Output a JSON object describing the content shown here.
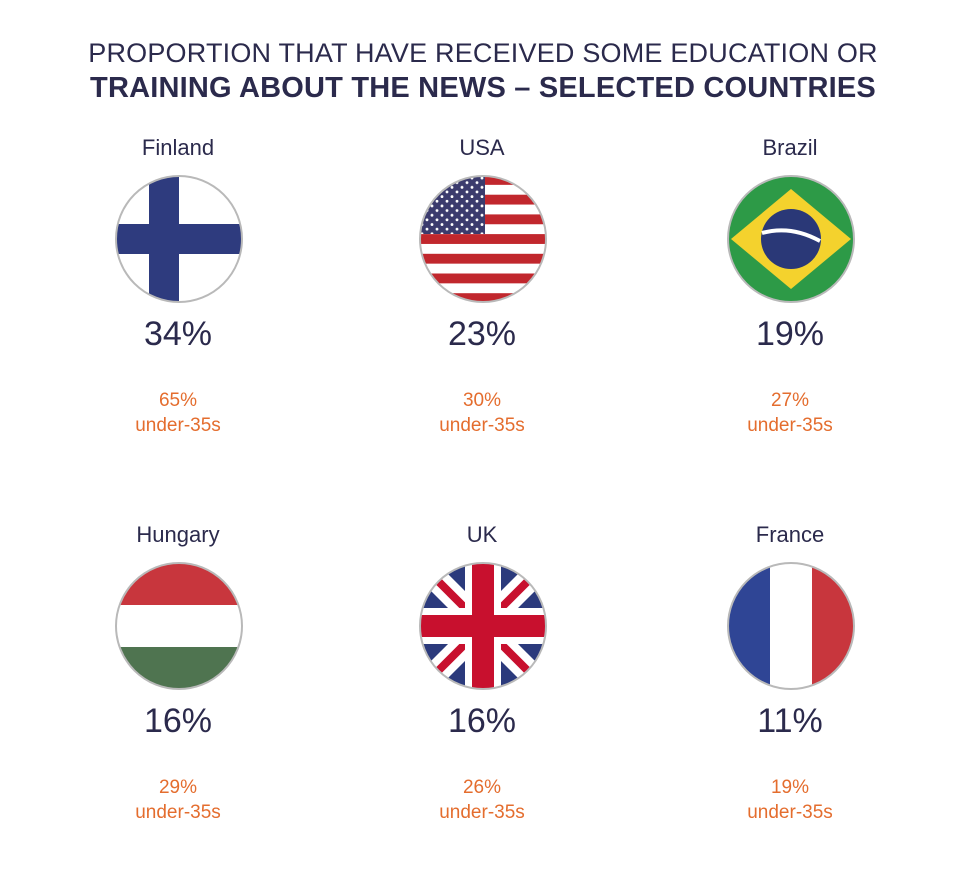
{
  "title": {
    "line1": "PROPORTION THAT HAVE RECEIVED SOME EDUCATION OR",
    "line2": "TRAINING ABOUT THE NEWS – SELECTED COUNTRIES"
  },
  "colors": {
    "text": "#2b2a4c",
    "accent": "#e46d2e"
  },
  "chart_data": {
    "type": "table",
    "title": "PROPORTION THAT HAVE RECEIVED SOME EDUCATION OR TRAINING ABOUT THE NEWS – SELECTED COUNTRIES",
    "sub_label": "under-35s",
    "countries": [
      {
        "name": "Finland",
        "all": "34%",
        "under35": "65%",
        "sub_label": "under-35s",
        "flag_icon": "finland-flag-icon",
        "value": 34,
        "under35_value": 65
      },
      {
        "name": "USA",
        "all": "23%",
        "under35": "30%",
        "sub_label": "under-35s",
        "flag_icon": "usa-flag-icon",
        "value": 23,
        "under35_value": 30
      },
      {
        "name": "Brazil",
        "all": "19%",
        "under35": "27%",
        "sub_label": "under-35s",
        "flag_icon": "brazil-flag-icon",
        "value": 19,
        "under35_value": 27
      },
      {
        "name": "Hungary",
        "all": "16%",
        "under35": "29%",
        "sub_label": "under-35s",
        "flag_icon": "hungary-flag-icon",
        "value": 16,
        "under35_value": 29
      },
      {
        "name": "UK",
        "all": "16%",
        "under35": "26%",
        "sub_label": "under-35s",
        "flag_icon": "uk-flag-icon",
        "value": 16,
        "under35_value": 26
      },
      {
        "name": "France",
        "all": "11%",
        "under35": "19%",
        "sub_label": "under-35s",
        "flag_icon": "france-flag-icon",
        "value": 11,
        "under35_value": 19
      }
    ]
  }
}
